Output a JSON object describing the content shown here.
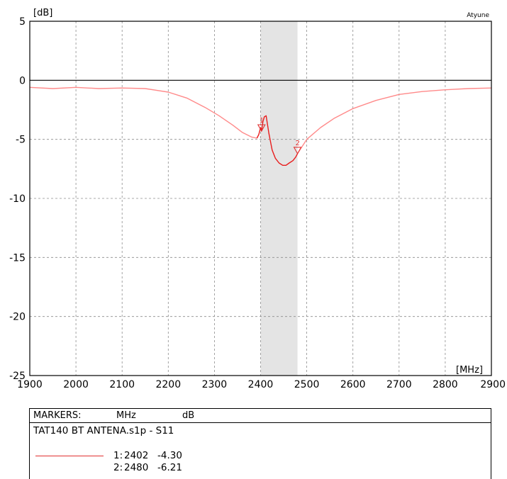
{
  "chart_data": {
    "type": "line",
    "brand": "Atyune",
    "y_unit": "[dB]",
    "x_unit": "[MHz]",
    "xlim": [
      1900,
      2900
    ],
    "ylim": [
      -25,
      5
    ],
    "x_ticks": [
      "1900",
      "2000",
      "2100",
      "2200",
      "2300",
      "2400",
      "2500",
      "2600",
      "2700",
      "2800",
      "2900"
    ],
    "y_ticks": [
      "5",
      "0",
      "-5",
      "-10",
      "-15",
      "-20",
      "-25"
    ],
    "grid": true,
    "band_highlight": [
      2400,
      2480
    ],
    "series": [
      {
        "color": "#ff8a8a",
        "x": [
          1900,
          1950,
          2000,
          2050,
          2100,
          2150,
          2200,
          2240,
          2280,
          2310,
          2340,
          2360,
          2380,
          2392
        ],
        "y": [
          -0.6,
          -0.7,
          -0.6,
          -0.7,
          -0.65,
          -0.7,
          -1.0,
          -1.5,
          -2.3,
          -3.0,
          -3.8,
          -4.4,
          -4.8,
          -4.9
        ]
      },
      {
        "color": "#e81c1c",
        "x": [
          2392,
          2396,
          2400,
          2402,
          2405,
          2408,
          2412,
          2418,
          2425,
          2432,
          2440,
          2448,
          2455,
          2462,
          2470,
          2476,
          2480
        ],
        "y": [
          -4.9,
          -4.6,
          -4.0,
          -4.3,
          -3.5,
          -3.1,
          -3.0,
          -4.5,
          -5.9,
          -6.6,
          -7.0,
          -7.2,
          -7.2,
          -7.0,
          -6.8,
          -6.5,
          -6.21
        ]
      },
      {
        "color": "#ff8a8a",
        "x": [
          2480,
          2500,
          2530,
          2560,
          2600,
          2650,
          2700,
          2750,
          2800,
          2850,
          2900
        ],
        "y": [
          -6.21,
          -5.0,
          -4.0,
          -3.2,
          -2.4,
          -1.7,
          -1.2,
          -0.95,
          -0.8,
          -0.7,
          -0.65
        ]
      }
    ],
    "markers": [
      {
        "label": "1",
        "x": 2402,
        "y": -4.3
      },
      {
        "label": "2",
        "x": 2480,
        "y": -6.21
      }
    ]
  },
  "markers_table": {
    "header_title": "MARKERS:",
    "header_x": "MHz",
    "header_y": "dB",
    "file": "TAT140 BT ANTENA.s1p - S11",
    "rows": [
      {
        "id": "1:",
        "x": "2402",
        "y": "-4.30"
      },
      {
        "id": "2:",
        "x": "2480",
        "y": "-6.21"
      }
    ]
  }
}
